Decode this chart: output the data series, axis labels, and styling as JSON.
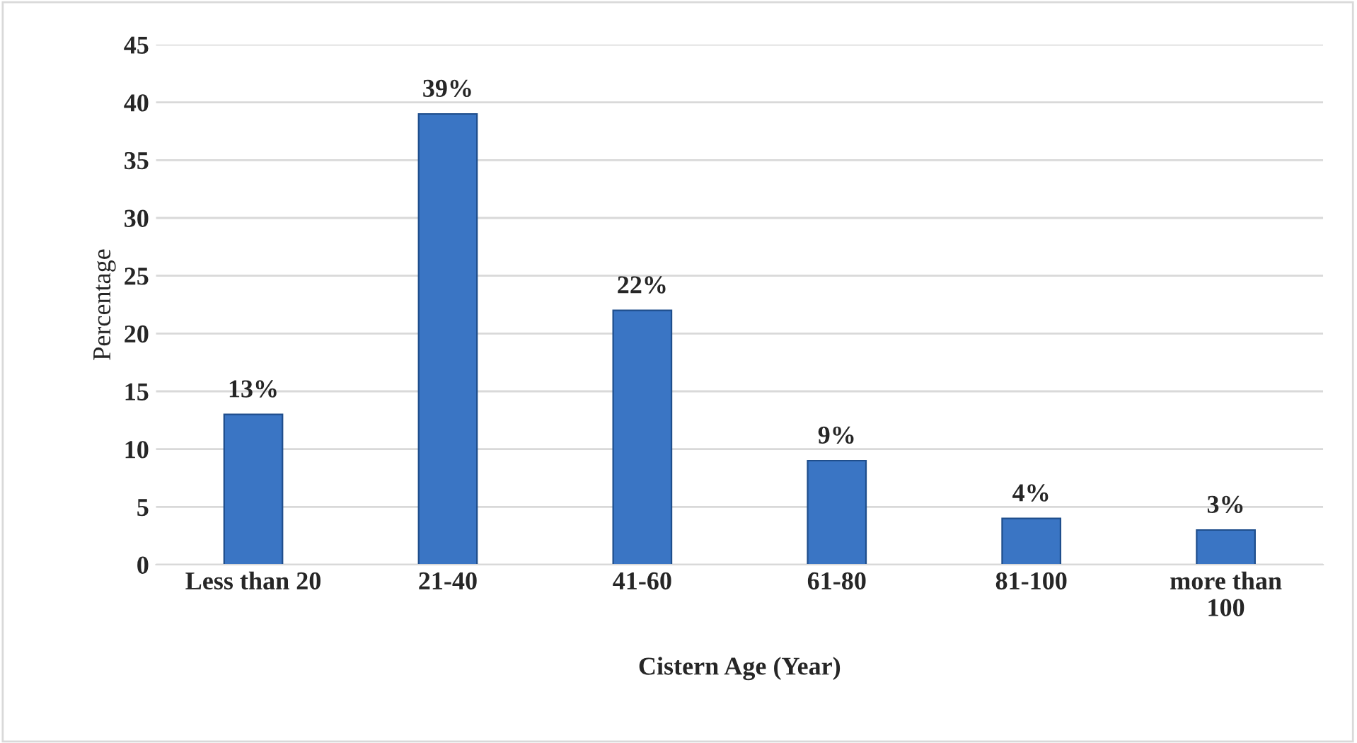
{
  "chart_data": {
    "type": "bar",
    "xlabel": "Cistern Age (Year)",
    "ylabel": "Percentage",
    "categories": [
      "Less than 20",
      "21-40",
      "41-60",
      "61-80",
      "81-100",
      "more than\n100"
    ],
    "values": [
      13,
      39,
      22,
      9,
      4,
      3
    ],
    "value_labels": [
      "13%",
      "39%",
      "22%",
      "9%",
      "4%",
      "3%"
    ],
    "color": "#3a75c4",
    "ylim": [
      0,
      45
    ],
    "yticks": [
      0,
      5,
      10,
      15,
      20,
      25,
      30,
      35,
      40,
      45
    ],
    "grid": "y",
    "legend": false
  }
}
